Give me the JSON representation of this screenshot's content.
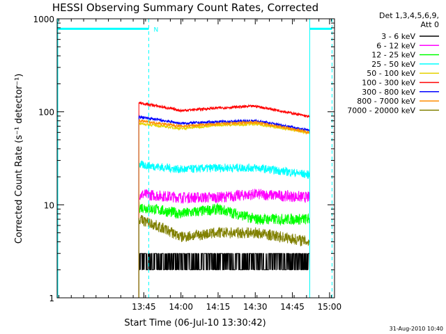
{
  "chart_data": {
    "type": "line",
    "title": "HESSI Observing Summary Count Rates, Corrected",
    "xlabel": "Start Time (06-Jul-10 13:30:42)",
    "ylabel": "Corrected Count Rate (s⁻¹ detector⁻¹)",
    "yscale": "log",
    "ylim": [
      1,
      1000
    ],
    "xlim_minutes": [
      -20.7,
      91.3
    ],
    "x_ticks": [
      "13:45",
      "14:00",
      "14:15",
      "14:30",
      "14:45",
      "15:00"
    ],
    "y_ticks": [
      "1",
      "10",
      "100",
      "1000"
    ],
    "legend_title": [
      "Det 1,3,4,5,6,9,",
      "Att 0"
    ],
    "legend_position": "right",
    "series": [
      {
        "name": "3 - 6 keV",
        "color": "#000000",
        "times": [
          "13:43",
          "14:52"
        ],
        "values": [
          2.5,
          2.5
        ]
      },
      {
        "name": "6 - 12 keV",
        "color": "#ff00ff",
        "times": [
          "13:43",
          "14:00",
          "14:15",
          "14:30",
          "14:52"
        ],
        "values": [
          13,
          12,
          12,
          13,
          12
        ]
      },
      {
        "name": "12 - 25 keV",
        "color": "#00ff00",
        "times": [
          "13:43",
          "14:00",
          "14:15",
          "14:30",
          "14:52"
        ],
        "values": [
          9.5,
          8,
          9,
          7,
          7
        ]
      },
      {
        "name": "25 - 50 keV",
        "color": "#00ffff",
        "times": [
          "13:43",
          "14:00",
          "14:15",
          "14:30",
          "14:52"
        ],
        "values": [
          27,
          24,
          25,
          25,
          21
        ]
      },
      {
        "name": "50 - 100 keV",
        "color": "#e6d200",
        "times": [
          "13:43",
          "14:00",
          "14:15",
          "14:30",
          "14:52"
        ],
        "values": [
          75,
          66,
          72,
          74,
          59
        ]
      },
      {
        "name": "100 - 300 keV",
        "color": "#ff0000",
        "times": [
          "13:43",
          "14:00",
          "14:15",
          "14:30",
          "14:52"
        ],
        "values": [
          125,
          103,
          110,
          115,
          88
        ]
      },
      {
        "name": "300 - 800 keV",
        "color": "#0000ff",
        "times": [
          "13:43",
          "14:00",
          "14:15",
          "14:30",
          "14:52"
        ],
        "values": [
          88,
          75,
          78,
          80,
          63
        ]
      },
      {
        "name": "800 - 7000 keV",
        "color": "#ff8c00",
        "times": [
          "13:43",
          "14:00",
          "14:15",
          "14:30",
          "14:52"
        ],
        "values": [
          80,
          70,
          74,
          77,
          60
        ]
      },
      {
        "name": "7000 - 20000 keV",
        "color": "#808000",
        "times": [
          "13:43",
          "14:00",
          "14:15",
          "14:30",
          "14:52"
        ],
        "values": [
          7,
          4.5,
          5,
          5,
          4
        ]
      }
    ],
    "annotations": {
      "attenuator_flag": {
        "label": "N",
        "value": 780
      },
      "night_start": "13:43",
      "night_end": "14:52",
      "dashed_markers": [
        "13:47",
        "15:01"
      ]
    },
    "footer_date": "31-Aug-2010 10:40"
  }
}
